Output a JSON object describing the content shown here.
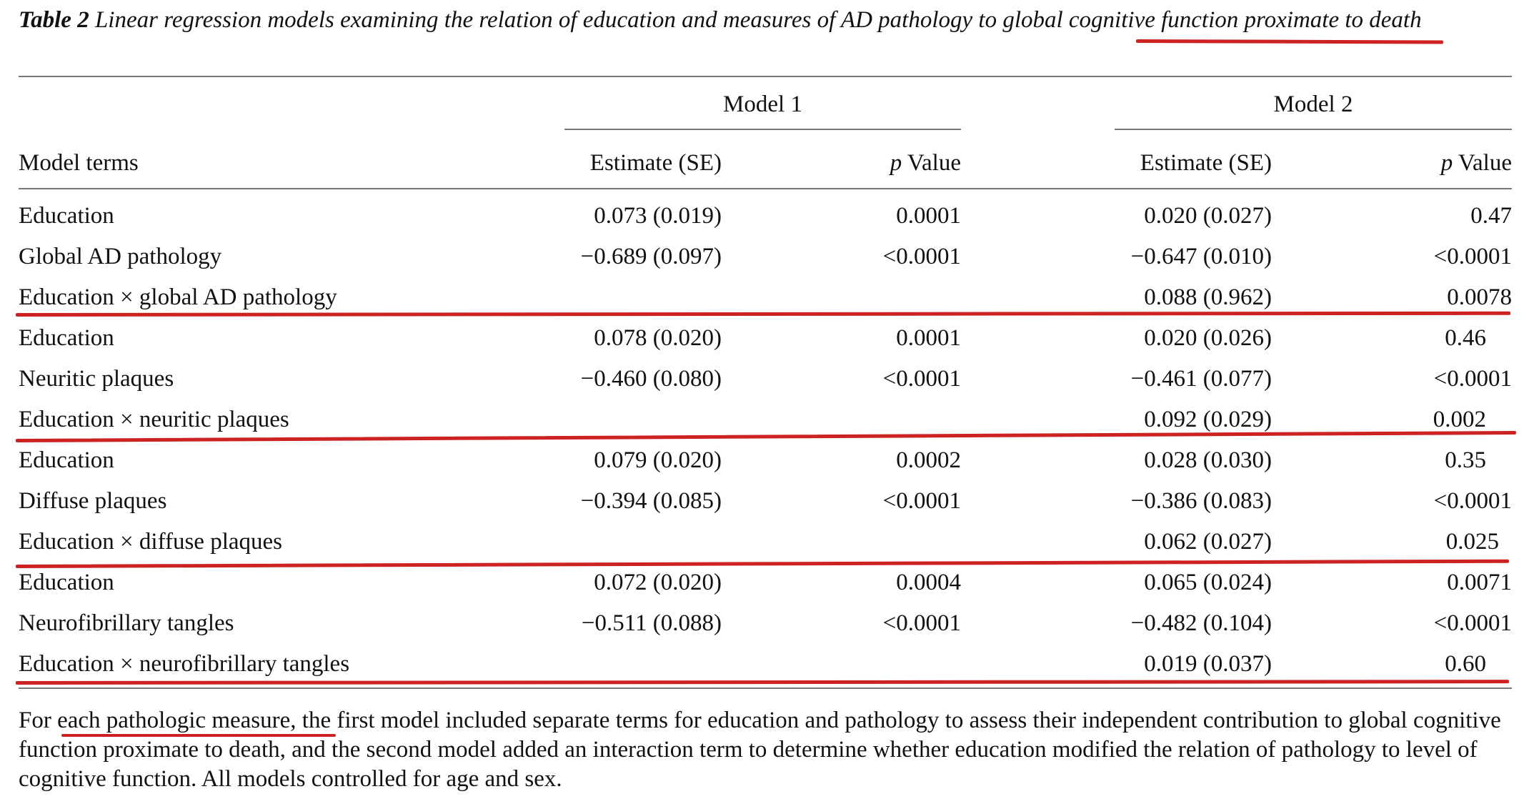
{
  "caption": {
    "label": "Table 2",
    "text": "Linear regression models examining the relation of education and measures of AD pathology to global cognitive function proximate to death"
  },
  "header": {
    "model1": "Model 1",
    "model2": "Model 2",
    "terms": "Model terms",
    "estimate1": "Estimate (SE)",
    "estimate2": "Estimate (SE)",
    "p_letter": "p",
    "p_value": "Value"
  },
  "rows": [
    {
      "term": "Education",
      "m1_est": "0.073 (0.019)",
      "m1_p": "0.0001",
      "m2_est": "0.020 (0.027)",
      "m2_p": "0.47"
    },
    {
      "term": "Global AD pathology",
      "m1_est": "−0.689 (0.097)",
      "m1_p": "<0.0001",
      "m2_est": "−0.647 (0.010)",
      "m2_p": "<0.0001"
    },
    {
      "term": "Education × global AD pathology",
      "m1_est": "",
      "m1_p": "",
      "m2_est": "0.088 (0.962)",
      "m2_p": "0.0078"
    },
    {
      "term": "Education",
      "m1_est": "0.078 (0.020)",
      "m1_p": "0.0001",
      "m2_est": "0.020 (0.026)",
      "m2_p": "0.46"
    },
    {
      "term": "Neuritic plaques",
      "m1_est": "−0.460 (0.080)",
      "m1_p": "<0.0001",
      "m2_est": "−0.461 (0.077)",
      "m2_p": "<0.0001"
    },
    {
      "term": "Education × neuritic plaques",
      "m1_est": "",
      "m1_p": "",
      "m2_est": "0.092 (0.029)",
      "m2_p": "0.002"
    },
    {
      "term": "Education",
      "m1_est": "0.079 (0.020)",
      "m1_p": "0.0002",
      "m2_est": "0.028 (0.030)",
      "m2_p": "0.35"
    },
    {
      "term": "Diffuse plaques",
      "m1_est": "−0.394 (0.085)",
      "m1_p": "<0.0001",
      "m2_est": "−0.386 (0.083)",
      "m2_p": "<0.0001"
    },
    {
      "term": "Education × diffuse plaques",
      "m1_est": "",
      "m1_p": "",
      "m2_est": "0.062 (0.027)",
      "m2_p": "0.025"
    },
    {
      "term": "Education",
      "m1_est": "0.072 (0.020)",
      "m1_p": "0.0004",
      "m2_est": "0.065 (0.024)",
      "m2_p": "0.0071"
    },
    {
      "term": "Neurofibrillary tangles",
      "m1_est": "−0.511 (0.088)",
      "m1_p": "<0.0001",
      "m2_est": "−0.482 (0.104)",
      "m2_p": "<0.0001"
    },
    {
      "term": "Education × neurofibrillary tangles",
      "m1_est": "",
      "m1_p": "",
      "m2_est": "0.019 (0.037)",
      "m2_p": "0.60"
    }
  ],
  "footnote": "For each pathologic measure, the first model included separate terms for education and pathology to assess their independent contribution to global cognitive function proximate to death, and the second model added an interaction term to determine whether education modified the relation of pathology to level of cognitive function. All models controlled for age and sex.",
  "annotation_color": "#cc2222"
}
